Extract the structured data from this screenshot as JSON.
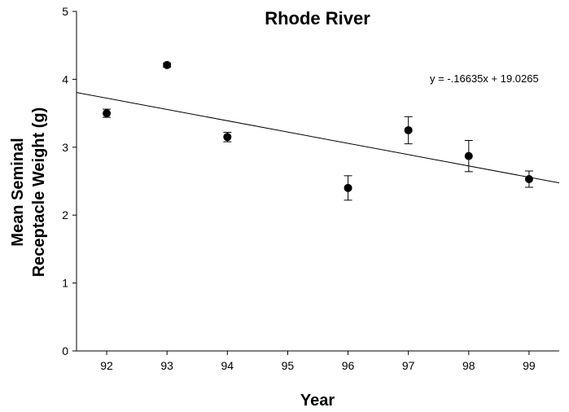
{
  "chart_data": {
    "type": "scatter",
    "title": "Rhode River",
    "xlabel": "Year",
    "ylabel_lines": [
      "Mean Seminal",
      "Receptacle Weight (g)"
    ],
    "xlim": [
      91.5,
      99.5
    ],
    "ylim": [
      0,
      5
    ],
    "x_ticks": [
      92,
      93,
      94,
      95,
      96,
      97,
      98,
      99
    ],
    "y_ticks": [
      0,
      1,
      2,
      3,
      4,
      5
    ],
    "grid": false,
    "legend": "none",
    "points": [
      {
        "x": 92,
        "y": 3.5,
        "err": 0.06
      },
      {
        "x": 93,
        "y": 4.21,
        "err": 0.03
      },
      {
        "x": 94,
        "y": 3.15,
        "err": 0.07
      },
      {
        "x": 96,
        "y": 2.4,
        "err": 0.18
      },
      {
        "x": 97,
        "y": 3.25,
        "err": 0.2
      },
      {
        "x": 98,
        "y": 2.87,
        "err": 0.23
      },
      {
        "x": 99,
        "y": 2.53,
        "err": 0.12
      }
    ],
    "trendline": {
      "slope": -0.16635,
      "intercept": 19.0265
    },
    "equation_label": "y = -.16635x + 19.0265"
  }
}
